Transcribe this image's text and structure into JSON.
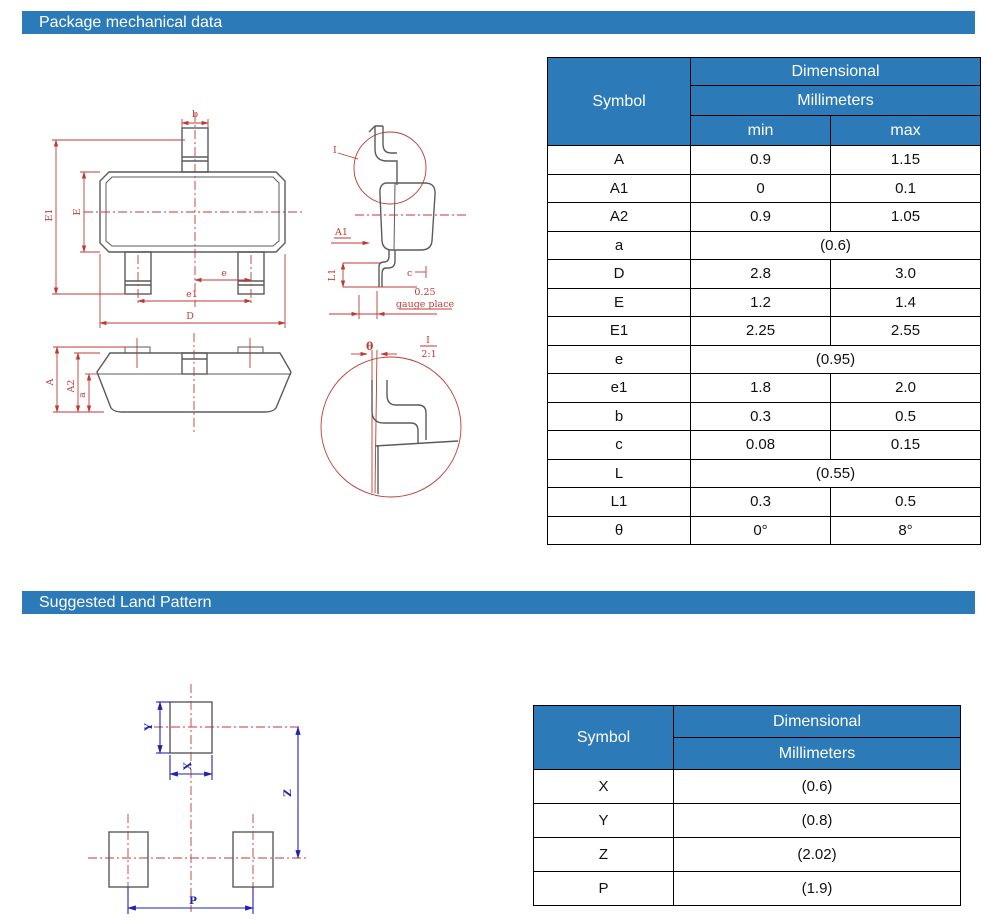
{
  "colors": {
    "accent_blue": "#2c7ab8",
    "drawing_red": "#c03a34",
    "drawing_blue": "#2222b2",
    "outline_gray": "#5b5b5b"
  },
  "sections": {
    "package": {
      "title": "Package mechanical data"
    },
    "land": {
      "title": "Suggested Land Pattern"
    }
  },
  "dim_table": {
    "header": {
      "symbol": "Symbol",
      "dimensional": "Dimensional",
      "millimeters": "Millimeters",
      "min": "min",
      "max": "max"
    },
    "rows": [
      {
        "symbol": "A",
        "min": "0.9",
        "max": "1.15"
      },
      {
        "symbol": "A1",
        "min": "0",
        "max": "0.1"
      },
      {
        "symbol": "A2",
        "min": "0.9",
        "max": "1.05"
      },
      {
        "symbol": "a",
        "span": "(0.6)"
      },
      {
        "symbol": "D",
        "min": "2.8",
        "max": "3.0"
      },
      {
        "symbol": "E",
        "min": "1.2",
        "max": "1.4"
      },
      {
        "symbol": "E1",
        "min": "2.25",
        "max": "2.55"
      },
      {
        "symbol": "e",
        "span": "(0.95)"
      },
      {
        "symbol": "e1",
        "min": "1.8",
        "max": "2.0"
      },
      {
        "symbol": "b",
        "min": "0.3",
        "max": "0.5"
      },
      {
        "symbol": "c",
        "min": "0.08",
        "max": "0.15"
      },
      {
        "symbol": "L",
        "span": "(0.55)"
      },
      {
        "symbol": "L1",
        "min": "0.3",
        "max": "0.5"
      },
      {
        "symbol": "θ",
        "min": "0°",
        "max": "8°"
      }
    ]
  },
  "land_table": {
    "header": {
      "symbol": "Symbol",
      "dimensional": "Dimensional",
      "millimeters": "Millimeters"
    },
    "rows": [
      {
        "symbol": "X",
        "value": "(0.6)"
      },
      {
        "symbol": "Y",
        "value": "(0.8)"
      },
      {
        "symbol": "Z",
        "value": "(2.02)"
      },
      {
        "symbol": "P",
        "value": "(1.9)"
      }
    ]
  },
  "drawings": {
    "top_view": {
      "labels": {
        "b": "b",
        "E1": "E1",
        "E": "E",
        "e": "e",
        "e1": "e1",
        "D": "D"
      }
    },
    "side_view": {
      "labels": {
        "callout": "I",
        "A1": "A1",
        "L1": "L1",
        "c": "c",
        "gauge_val": "0.25",
        "gauge_text": "gauge place",
        "theta": "θ",
        "detail_ref": "I",
        "detail_scale": "2:1"
      }
    },
    "front_view": {
      "labels": {
        "A": "A",
        "A2": "A2",
        "a": "a"
      }
    },
    "land_pattern": {
      "labels": {
        "X": "X",
        "Y": "Y",
        "Z": "Z",
        "P": "P"
      }
    }
  }
}
